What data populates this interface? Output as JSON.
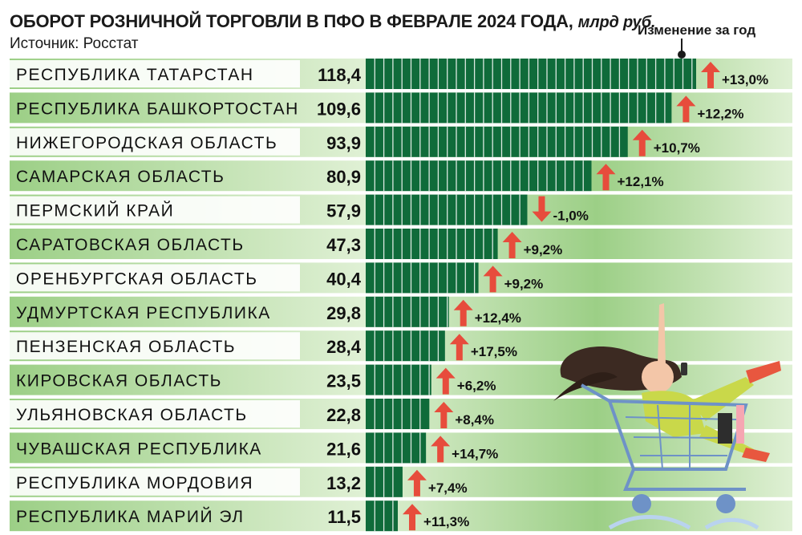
{
  "header": {
    "title": "ОБОРОТ РОЗНИЧНОЙ ТОРГОВЛИ В ПФО В ФЕВРАЛЕ 2024 ГОДА,",
    "unit": "млрд руб.",
    "source": "Источник: Росстат",
    "change_label": "Изменение за год"
  },
  "colors": {
    "bar": "#0f6b3a",
    "band_dark": "#9ccf86",
    "band_light": "#dff0d4",
    "arrow": "#e74c3c"
  },
  "chart_data": {
    "type": "bar",
    "orientation": "horizontal",
    "title": "ОБОРОТ РОЗНИЧНОЙ ТОРГОВЛИ В ПФО В ФЕВРАЛЕ 2024 ГОДА, млрд руб.",
    "categories": [
      "РЕСПУБЛИКА ТАТАРСТАН",
      "РЕСПУБЛИКА БАШКОРТОСТАН",
      "НИЖЕГОРОДСКАЯ ОБЛАСТЬ",
      "САМАРСКАЯ ОБЛАСТЬ",
      "ПЕРМСКИЙ КРАЙ",
      "САРАТОВСКАЯ ОБЛАСТЬ",
      "ОРЕНБУРГСКАЯ ОБЛАСТЬ",
      "УДМУРТСКАЯ РЕСПУБЛИКА",
      "ПЕНЗЕНСКАЯ ОБЛАСТЬ",
      "КИРОВСКАЯ ОБЛАСТЬ",
      "УЛЬЯНОВСКАЯ ОБЛАСТЬ",
      "ЧУВАШСКАЯ РЕСПУБЛИКА",
      "РЕСПУБЛИКА МОРДОВИЯ",
      "РЕСПУБЛИКА МАРИЙ ЭЛ"
    ],
    "values": [
      118.4,
      109.6,
      93.9,
      80.9,
      57.9,
      47.3,
      40.4,
      29.8,
      28.4,
      23.5,
      22.8,
      21.6,
      13.2,
      11.5
    ],
    "value_labels": [
      "118,4",
      "109,6",
      "93,9",
      "80,9",
      "57,9",
      "47,3",
      "40,4",
      "29,8",
      "28,4",
      "23,5",
      "22,8",
      "21,6",
      "13,2",
      "11,5"
    ],
    "change": [
      13.0,
      12.2,
      10.7,
      12.1,
      -1.0,
      9.2,
      9.2,
      12.4,
      17.5,
      6.2,
      8.4,
      14.7,
      7.4,
      11.3
    ],
    "change_labels": [
      "+13,0%",
      "+12,2%",
      "+10,7%",
      "+12,1%",
      "-1,0%",
      "+9,2%",
      "+9,2%",
      "+12,4%",
      "+17,5%",
      "+6,2%",
      "+8,4%",
      "+14,7%",
      "+7,4%",
      "+11,3%"
    ],
    "xlim": [
      0,
      118.4
    ],
    "grid": false
  }
}
